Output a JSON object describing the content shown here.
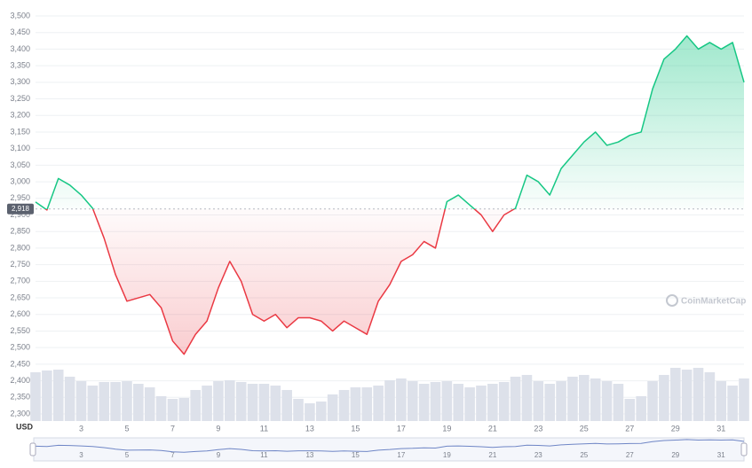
{
  "chart_data": {
    "type": "line",
    "currency": "USD",
    "watermark": "CoinMarketCap",
    "baseline": {
      "value": 2918,
      "label": "2,918"
    },
    "up_color": "#16c784",
    "down_color": "#ea3943",
    "volume_color": "#dde1ea",
    "xlim": [
      1,
      32
    ],
    "xticks": [
      3,
      5,
      7,
      9,
      11,
      13,
      15,
      17,
      19,
      21,
      23,
      25,
      27,
      29,
      31
    ],
    "ylim": [
      2300,
      3500
    ],
    "yticks": [
      {
        "value": 2300,
        "label": "2,300"
      },
      {
        "value": 2350,
        "label": "2,350"
      },
      {
        "value": 2400,
        "label": "2,400"
      },
      {
        "value": 2450,
        "label": "2,450"
      },
      {
        "value": 2500,
        "label": "2,500"
      },
      {
        "value": 2550,
        "label": "2,550"
      },
      {
        "value": 2600,
        "label": "2,600"
      },
      {
        "value": 2650,
        "label": "2,650"
      },
      {
        "value": 2700,
        "label": "2,700"
      },
      {
        "value": 2750,
        "label": "2,750"
      },
      {
        "value": 2800,
        "label": "2,800"
      },
      {
        "value": 2850,
        "label": "2,850"
      },
      {
        "value": 2900,
        "label": "2,900"
      },
      {
        "value": 2950,
        "label": "2,950"
      },
      {
        "value": 3000,
        "label": "3,000"
      },
      {
        "value": 3050,
        "label": "3,050"
      },
      {
        "value": 3100,
        "label": "3,100"
      },
      {
        "value": 3150,
        "label": "3,150"
      },
      {
        "value": 3200,
        "label": "3,200"
      },
      {
        "value": 3250,
        "label": "3,250"
      },
      {
        "value": 3300,
        "label": "3,300"
      },
      {
        "value": 3350,
        "label": "3,350"
      },
      {
        "value": 3400,
        "label": "3,400"
      },
      {
        "value": 3450,
        "label": "3,450"
      },
      {
        "value": 3500,
        "label": "3,500"
      }
    ],
    "x": [
      1,
      1.5,
      2,
      2.5,
      3,
      3.5,
      4,
      4.5,
      5,
      5.5,
      6,
      6.5,
      7,
      7.5,
      8,
      8.5,
      9,
      9.5,
      10,
      10.5,
      11,
      11.5,
      12,
      12.5,
      13,
      13.5,
      14,
      14.5,
      15,
      15.5,
      16,
      16.5,
      17,
      17.5,
      18,
      18.5,
      19,
      19.5,
      20,
      20.5,
      21,
      21.5,
      22,
      22.5,
      23,
      23.5,
      24,
      24.5,
      25,
      25.5,
      26,
      26.5,
      27,
      27.5,
      28,
      28.5,
      29,
      29.5,
      30,
      30.5,
      31,
      31.5,
      32
    ],
    "values": [
      2939,
      2915,
      3010,
      2990,
      2960,
      2920,
      2830,
      2720,
      2640,
      2650,
      2660,
      2620,
      2520,
      2480,
      2540,
      2580,
      2680,
      2760,
      2700,
      2600,
      2580,
      2600,
      2560,
      2590,
      2590,
      2580,
      2550,
      2580,
      2560,
      2540,
      2640,
      2690,
      2760,
      2780,
      2820,
      2800,
      2940,
      2960,
      2930,
      2900,
      2850,
      2900,
      2920,
      3020,
      3000,
      2960,
      3040,
      3080,
      3120,
      3150,
      3110,
      3120,
      3140,
      3150,
      3280,
      3370,
      3400,
      3440,
      3400,
      3420,
      3400,
      3420,
      3300
    ],
    "volume": [
      55,
      57,
      58,
      50,
      45,
      40,
      44,
      44,
      45,
      42,
      38,
      28,
      25,
      26,
      35,
      40,
      45,
      46,
      44,
      42,
      42,
      40,
      35,
      25,
      20,
      22,
      30,
      35,
      38,
      38,
      40,
      46,
      48,
      45,
      42,
      44,
      45,
      42,
      38,
      40,
      42,
      44,
      50,
      52,
      45,
      42,
      45,
      50,
      52,
      48,
      45,
      42,
      25,
      28,
      45,
      52,
      60,
      58,
      60,
      55,
      45,
      40,
      48
    ]
  }
}
